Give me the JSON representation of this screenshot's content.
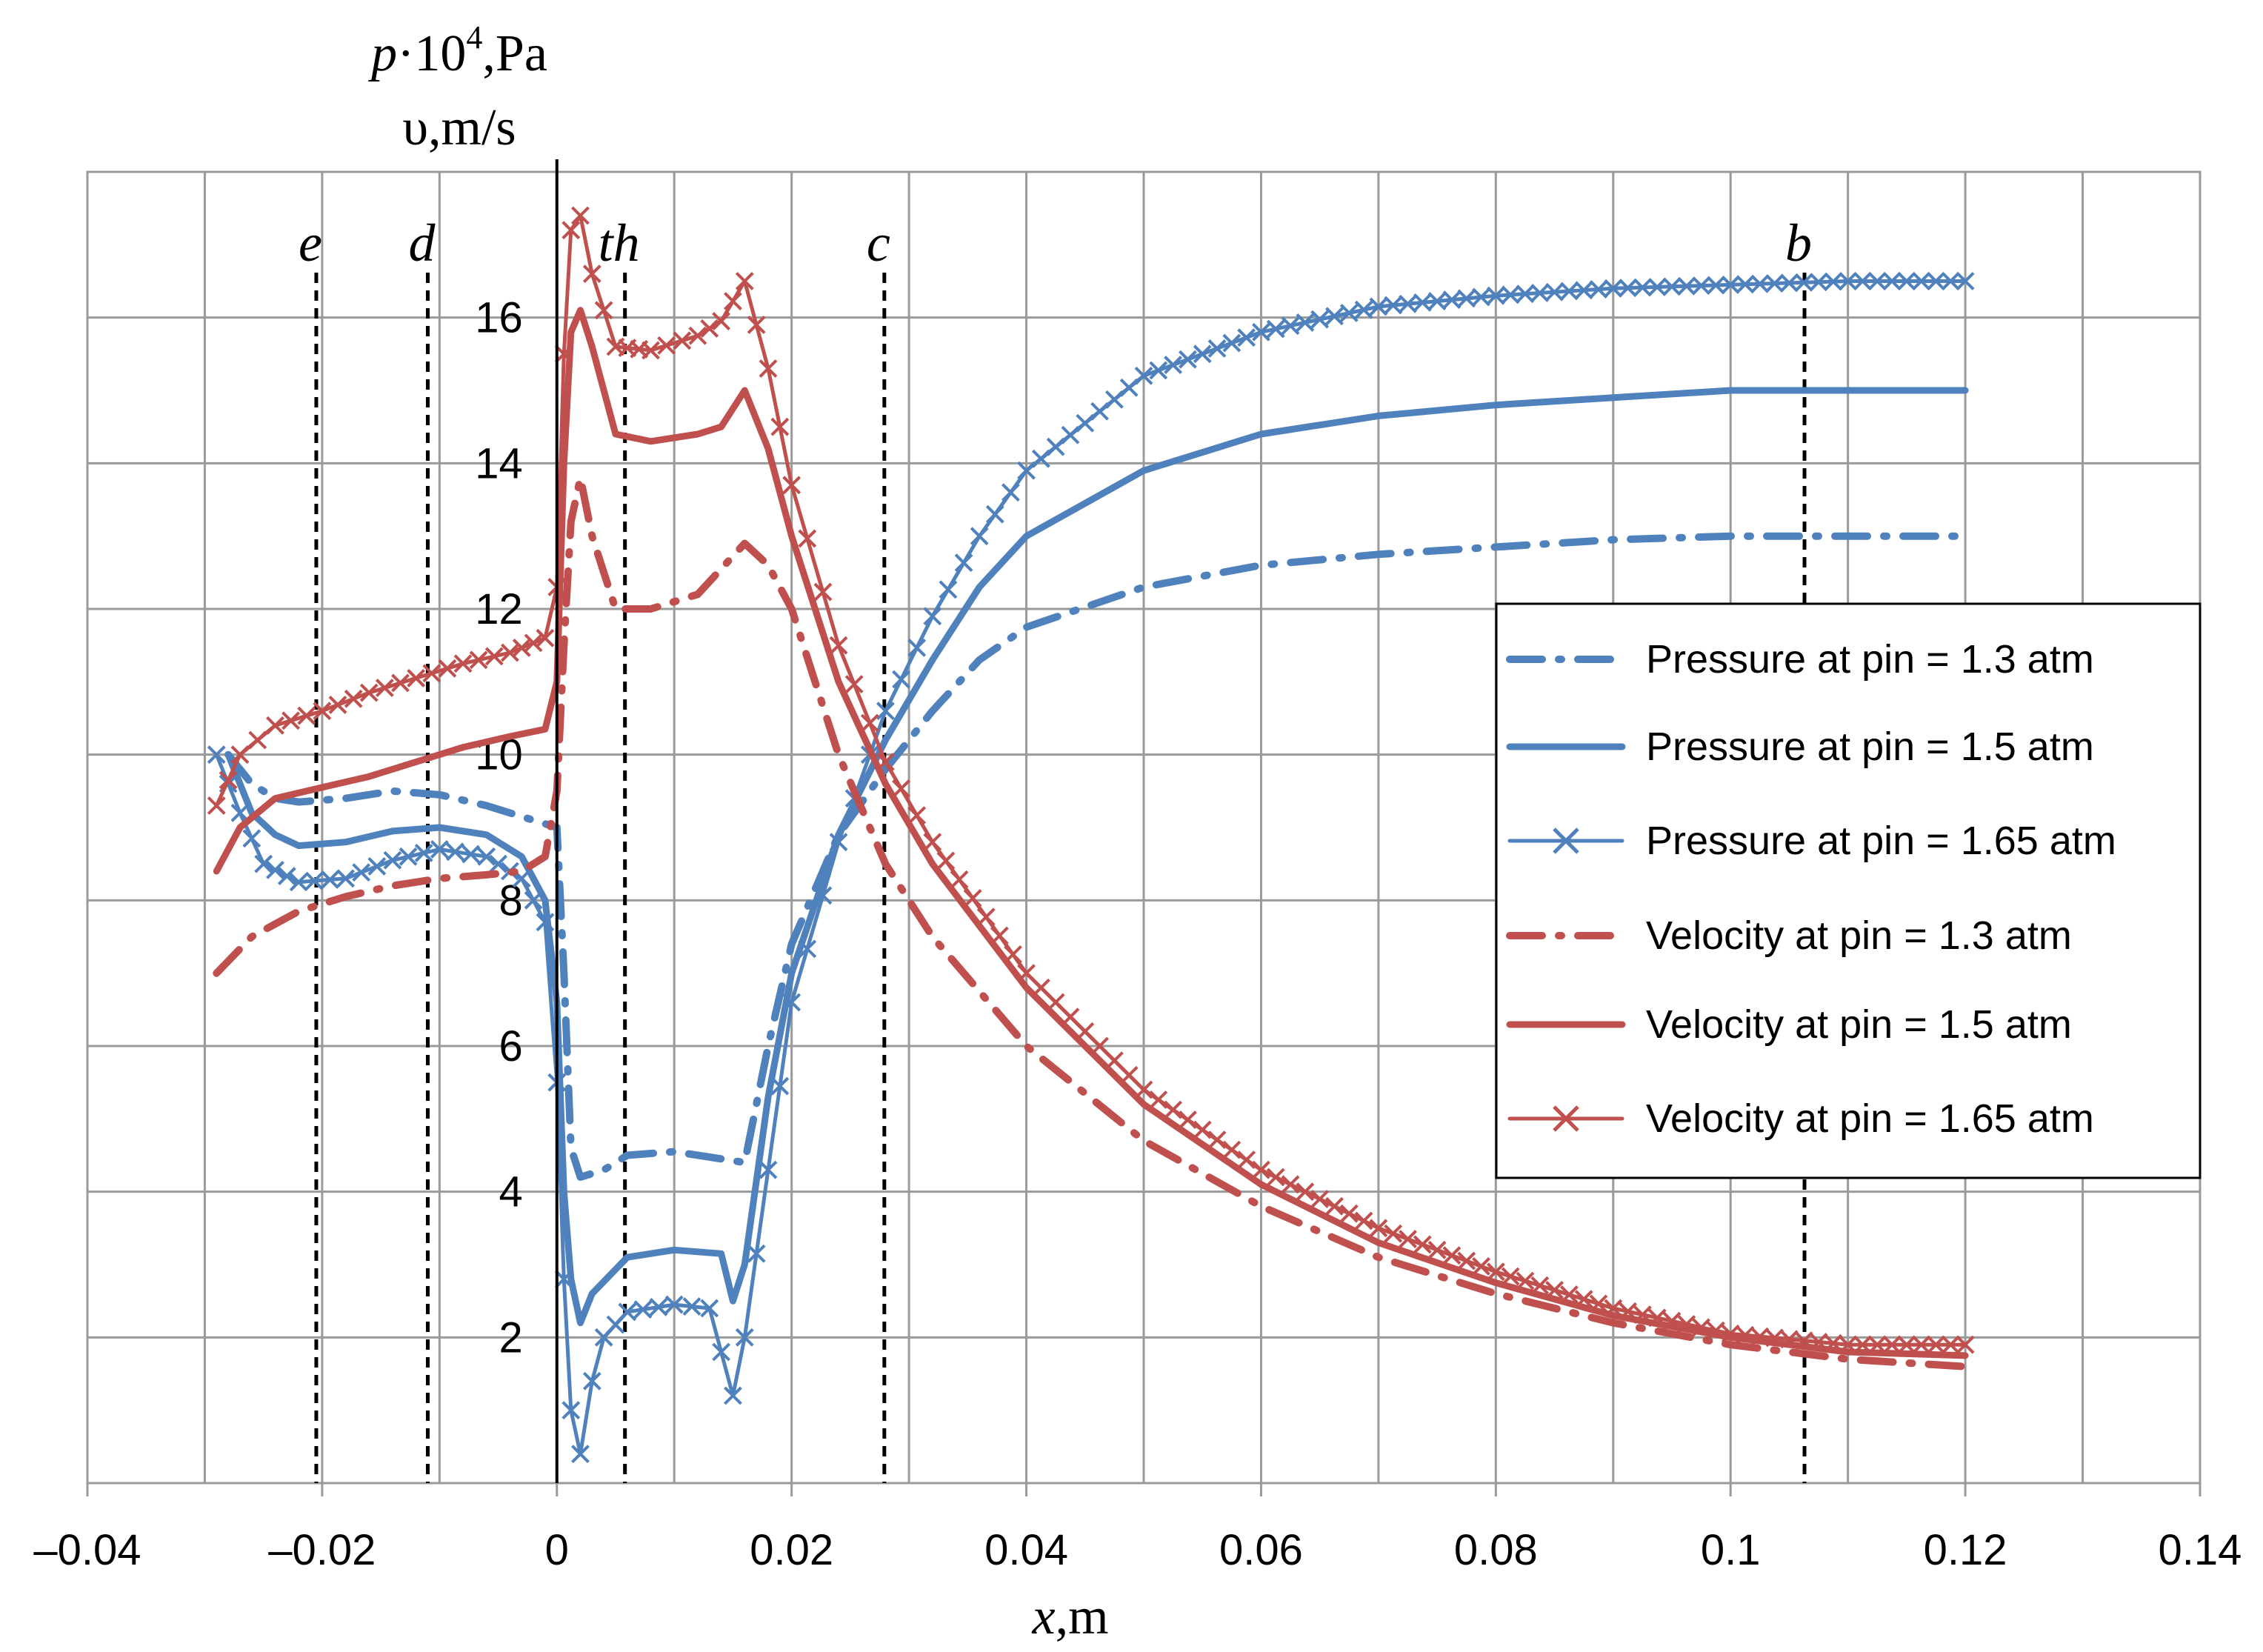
{
  "chart_data": {
    "type": "line",
    "x_axis": {
      "label_italic": "x",
      "label_rest": ",m",
      "range": [
        -0.04,
        0.14
      ],
      "ticks": [
        -0.04,
        -0.02,
        0,
        0.02,
        0.04,
        0.06,
        0.08,
        0.1,
        0.12,
        0.14
      ],
      "tick_labels": [
        "–0.04",
        "–0.02",
        "0",
        "0.02",
        "0.04",
        "0.06",
        "0.08",
        "0.1",
        "0.12",
        "0.14"
      ],
      "grid_step": 0.01
    },
    "y_axis": {
      "label_line1_italic": "p",
      "label_line1_mid": "·10",
      "label_line1_sup": "4",
      "label_line1_rest": ",Pa",
      "label_line2": "υ,m/s",
      "range": [
        0,
        18
      ],
      "ticks": [
        2,
        4,
        6,
        8,
        10,
        12,
        14,
        16
      ],
      "tick_labels": [
        "2",
        "4",
        "6",
        "8",
        "10",
        "12",
        "14",
        "16"
      ],
      "grid_step": 2
    },
    "vertical_markers": [
      {
        "label": "e",
        "x": -0.0205
      },
      {
        "label": "d",
        "x": -0.011
      },
      {
        "label": "th",
        "x": 0.0058
      },
      {
        "label": "c",
        "x": 0.0279
      },
      {
        "label": "b",
        "x": 0.1063
      }
    ],
    "legend_position": "right",
    "series": [
      {
        "name": "Pressure at pin = 1.3 atm",
        "color": "#4f81bd",
        "style": "dashdot",
        "marker": "none",
        "points": [
          [
            -0.028,
            10.0
          ],
          [
            -0.026,
            9.6
          ],
          [
            -0.024,
            9.4
          ],
          [
            -0.022,
            9.35
          ],
          [
            -0.018,
            9.4
          ],
          [
            -0.014,
            9.5
          ],
          [
            -0.01,
            9.45
          ],
          [
            -0.006,
            9.3
          ],
          [
            -0.002,
            9.1
          ],
          [
            0.0,
            9.0
          ],
          [
            0.0006,
            7.0
          ],
          [
            0.0012,
            4.6
          ],
          [
            0.002,
            4.2
          ],
          [
            0.004,
            4.3
          ],
          [
            0.006,
            4.5
          ],
          [
            0.01,
            4.55
          ],
          [
            0.014,
            4.45
          ],
          [
            0.016,
            4.4
          ],
          [
            0.018,
            6.0
          ],
          [
            0.02,
            7.4
          ],
          [
            0.024,
            8.9
          ],
          [
            0.028,
            9.8
          ],
          [
            0.032,
            10.6
          ],
          [
            0.036,
            11.3
          ],
          [
            0.04,
            11.75
          ],
          [
            0.05,
            12.3
          ],
          [
            0.06,
            12.6
          ],
          [
            0.07,
            12.75
          ],
          [
            0.08,
            12.85
          ],
          [
            0.09,
            12.95
          ],
          [
            0.1,
            13.0
          ],
          [
            0.11,
            13.0
          ],
          [
            0.12,
            13.0
          ]
        ]
      },
      {
        "name": "Pressure at pin = 1.5 atm",
        "color": "#4f81bd",
        "style": "solid",
        "marker": "none",
        "points": [
          [
            -0.028,
            10.0
          ],
          [
            -0.026,
            9.2
          ],
          [
            -0.024,
            8.9
          ],
          [
            -0.022,
            8.75
          ],
          [
            -0.018,
            8.8
          ],
          [
            -0.014,
            8.95
          ],
          [
            -0.01,
            9.0
          ],
          [
            -0.006,
            8.9
          ],
          [
            -0.003,
            8.6
          ],
          [
            -0.001,
            8.0
          ],
          [
            0.0,
            6.6
          ],
          [
            0.0006,
            4.0
          ],
          [
            0.0012,
            2.8
          ],
          [
            0.002,
            2.2
          ],
          [
            0.003,
            2.6
          ],
          [
            0.006,
            3.1
          ],
          [
            0.01,
            3.2
          ],
          [
            0.014,
            3.15
          ],
          [
            0.015,
            2.5
          ],
          [
            0.016,
            3.0
          ],
          [
            0.018,
            5.3
          ],
          [
            0.02,
            7.0
          ],
          [
            0.024,
            8.9
          ],
          [
            0.028,
            10.2
          ],
          [
            0.032,
            11.3
          ],
          [
            0.036,
            12.3
          ],
          [
            0.04,
            13.0
          ],
          [
            0.05,
            13.9
          ],
          [
            0.06,
            14.4
          ],
          [
            0.07,
            14.65
          ],
          [
            0.08,
            14.8
          ],
          [
            0.09,
            14.9
          ],
          [
            0.1,
            15.0
          ],
          [
            0.11,
            15.0
          ],
          [
            0.12,
            15.0
          ]
        ]
      },
      {
        "name": "Pressure at pin = 1.65 atm",
        "color": "#4f81bd",
        "style": "solid",
        "marker": "x",
        "points": [
          [
            -0.029,
            10.0
          ],
          [
            -0.027,
            9.2
          ],
          [
            -0.025,
            8.5
          ],
          [
            -0.022,
            8.25
          ],
          [
            -0.018,
            8.3
          ],
          [
            -0.014,
            8.55
          ],
          [
            -0.01,
            8.7
          ],
          [
            -0.006,
            8.6
          ],
          [
            -0.003,
            8.3
          ],
          [
            -0.001,
            7.7
          ],
          [
            0.0,
            5.5
          ],
          [
            0.0006,
            2.8
          ],
          [
            0.0012,
            1.0
          ],
          [
            0.002,
            0.4
          ],
          [
            0.003,
            1.4
          ],
          [
            0.004,
            2.0
          ],
          [
            0.006,
            2.35
          ],
          [
            0.01,
            2.45
          ],
          [
            0.013,
            2.4
          ],
          [
            0.015,
            1.2
          ],
          [
            0.016,
            2.0
          ],
          [
            0.018,
            4.3
          ],
          [
            0.02,
            6.6
          ],
          [
            0.024,
            8.8
          ],
          [
            0.028,
            10.6
          ],
          [
            0.032,
            11.9
          ],
          [
            0.036,
            13.0
          ],
          [
            0.04,
            13.9
          ],
          [
            0.05,
            15.2
          ],
          [
            0.06,
            15.8
          ],
          [
            0.07,
            16.15
          ],
          [
            0.08,
            16.3
          ],
          [
            0.09,
            16.4
          ],
          [
            0.1,
            16.45
          ],
          [
            0.11,
            16.5
          ],
          [
            0.12,
            16.5
          ]
        ]
      },
      {
        "name": "Velocity at pin = 1.3 atm",
        "color": "#c0504d",
        "style": "dashdot",
        "marker": "none",
        "points": [
          [
            -0.029,
            7.0
          ],
          [
            -0.026,
            7.5
          ],
          [
            -0.022,
            7.85
          ],
          [
            -0.018,
            8.05
          ],
          [
            -0.014,
            8.2
          ],
          [
            -0.01,
            8.3
          ],
          [
            -0.006,
            8.35
          ],
          [
            -0.003,
            8.4
          ],
          [
            -0.001,
            8.6
          ],
          [
            0.0,
            9.5
          ],
          [
            0.0006,
            11.5
          ],
          [
            0.0012,
            13.2
          ],
          [
            0.002,
            13.8
          ],
          [
            0.003,
            13.0
          ],
          [
            0.005,
            12.0
          ],
          [
            0.008,
            12.0
          ],
          [
            0.012,
            12.2
          ],
          [
            0.016,
            12.9
          ],
          [
            0.018,
            12.6
          ],
          [
            0.02,
            12.0
          ],
          [
            0.024,
            10.0
          ],
          [
            0.028,
            8.5
          ],
          [
            0.032,
            7.5
          ],
          [
            0.04,
            6.0
          ],
          [
            0.05,
            4.7
          ],
          [
            0.06,
            3.8
          ],
          [
            0.07,
            3.1
          ],
          [
            0.08,
            2.6
          ],
          [
            0.09,
            2.2
          ],
          [
            0.1,
            1.9
          ],
          [
            0.11,
            1.7
          ],
          [
            0.12,
            1.6
          ]
        ]
      },
      {
        "name": "Velocity at pin = 1.5 atm",
        "color": "#c0504d",
        "style": "solid",
        "marker": "none",
        "points": [
          [
            -0.029,
            8.4
          ],
          [
            -0.027,
            9.0
          ],
          [
            -0.024,
            9.4
          ],
          [
            -0.02,
            9.55
          ],
          [
            -0.016,
            9.7
          ],
          [
            -0.012,
            9.9
          ],
          [
            -0.008,
            10.1
          ],
          [
            -0.004,
            10.25
          ],
          [
            -0.001,
            10.35
          ],
          [
            0.0,
            11.0
          ],
          [
            0.0006,
            14.0
          ],
          [
            0.0012,
            15.8
          ],
          [
            0.002,
            16.1
          ],
          [
            0.003,
            15.6
          ],
          [
            0.005,
            14.4
          ],
          [
            0.008,
            14.3
          ],
          [
            0.012,
            14.4
          ],
          [
            0.014,
            14.5
          ],
          [
            0.016,
            15.0
          ],
          [
            0.018,
            14.2
          ],
          [
            0.02,
            13.0
          ],
          [
            0.024,
            11.0
          ],
          [
            0.028,
            9.6
          ],
          [
            0.032,
            8.5
          ],
          [
            0.04,
            6.8
          ],
          [
            0.05,
            5.2
          ],
          [
            0.06,
            4.1
          ],
          [
            0.07,
            3.3
          ],
          [
            0.08,
            2.75
          ],
          [
            0.09,
            2.3
          ],
          [
            0.1,
            2.0
          ],
          [
            0.11,
            1.8
          ],
          [
            0.12,
            1.75
          ]
        ]
      },
      {
        "name": "Velocity at pin = 1.65 atm",
        "color": "#c0504d",
        "style": "solid",
        "marker": "x",
        "points": [
          [
            -0.029,
            9.3
          ],
          [
            -0.027,
            10.0
          ],
          [
            -0.024,
            10.4
          ],
          [
            -0.02,
            10.6
          ],
          [
            -0.016,
            10.85
          ],
          [
            -0.012,
            11.05
          ],
          [
            -0.008,
            11.25
          ],
          [
            -0.004,
            11.4
          ],
          [
            -0.001,
            11.6
          ],
          [
            0.0,
            12.3
          ],
          [
            0.0006,
            15.5
          ],
          [
            0.0012,
            17.2
          ],
          [
            0.002,
            17.4
          ],
          [
            0.003,
            16.6
          ],
          [
            0.005,
            15.6
          ],
          [
            0.008,
            15.55
          ],
          [
            0.012,
            15.75
          ],
          [
            0.014,
            15.95
          ],
          [
            0.016,
            16.5
          ],
          [
            0.018,
            15.3
          ],
          [
            0.02,
            13.7
          ],
          [
            0.024,
            11.5
          ],
          [
            0.028,
            9.9
          ],
          [
            0.032,
            8.8
          ],
          [
            0.04,
            7.0
          ],
          [
            0.05,
            5.4
          ],
          [
            0.06,
            4.3
          ],
          [
            0.07,
            3.5
          ],
          [
            0.08,
            2.9
          ],
          [
            0.09,
            2.4
          ],
          [
            0.1,
            2.05
          ],
          [
            0.11,
            1.9
          ],
          [
            0.12,
            1.9
          ]
        ]
      }
    ]
  }
}
